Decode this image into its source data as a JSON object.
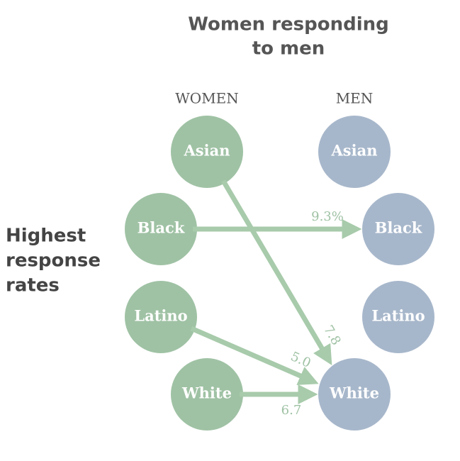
{
  "title": [
    "Women responding",
    "to men"
  ],
  "side_label": [
    "Highest",
    "response",
    "rates"
  ],
  "women": {
    "header": "WOMEN",
    "nodes": [
      "Asian",
      "Black",
      "Latino",
      "White"
    ]
  },
  "men": {
    "header": "MEN",
    "nodes": [
      "Asian",
      "Black",
      "Latino",
      "White"
    ]
  },
  "edges": [
    {
      "label": "9.3%"
    },
    {
      "label": "7.8"
    },
    {
      "label": "5.0"
    },
    {
      "label": "6.7"
    }
  ]
}
